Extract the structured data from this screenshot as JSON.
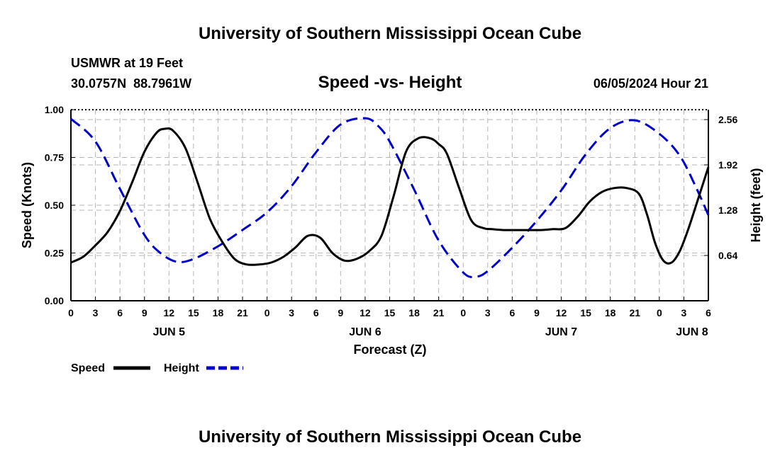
{
  "header": {
    "title": "University of Southern Mississippi Ocean Cube",
    "station": "USMWR at 19 Feet",
    "location": "30.0757N  88.7961W",
    "subtitle": "Speed -vs- Height",
    "datetime": "06/05/2024 Hour 21"
  },
  "footer": {
    "title": "University of Southern Mississippi Ocean Cube"
  },
  "chart_data": {
    "type": "line",
    "title": "Speed -vs- Height",
    "xlabel": "Forecast (Z)",
    "ylabel": "Speed (Knots)",
    "y2label": "Height (feet)",
    "x_unit": "forecast hour (0 = 00Z Jun 5)",
    "xlim": [
      0,
      78
    ],
    "ylim": [
      0,
      1.0
    ],
    "y2lim": [
      0,
      2.7
    ],
    "grid": true,
    "x_tick_values": [
      0,
      3,
      6,
      9,
      12,
      15,
      18,
      21,
      24,
      27,
      30,
      33,
      36,
      39,
      42,
      45,
      48,
      51,
      54,
      57,
      60,
      63,
      66,
      69,
      72,
      75,
      78
    ],
    "x_tick_labels": [
      "0",
      "3",
      "6",
      "9",
      "12",
      "15",
      "18",
      "21",
      "0",
      "3",
      "6",
      "9",
      "12",
      "15",
      "18",
      "21",
      "0",
      "3",
      "6",
      "9",
      "12",
      "15",
      "18",
      "21",
      "0",
      "3",
      "6"
    ],
    "y_tick_values": [
      0,
      0.25,
      0.5,
      0.75,
      1.0
    ],
    "y_tick_labels": [
      "0.00",
      "0.25",
      "0.50",
      "0.75",
      "1.00"
    ],
    "y2_tick_values": [
      0.64,
      1.28,
      1.92,
      2.56
    ],
    "y2_tick_labels": [
      "0.64",
      "1.28",
      "1.92",
      "2.56"
    ],
    "day_labels": [
      {
        "x": 12,
        "label": "JUN 5"
      },
      {
        "x": 36,
        "label": "JUN 6"
      },
      {
        "x": 60,
        "label": "JUN 7"
      },
      {
        "x": 76,
        "label": "JUN 8"
      }
    ],
    "legend": {
      "placement": "bottom-left",
      "entries": [
        "Speed",
        "Height"
      ]
    },
    "series": [
      {
        "name": "Speed",
        "axis": "left",
        "color": "#000000",
        "dash": "solid",
        "x": [
          0,
          1.5,
          3,
          4.5,
          6,
          7.5,
          9,
          10.5,
          11.5,
          12.5,
          14,
          15.5,
          17,
          18.5,
          20,
          21.5,
          23,
          24.5,
          26,
          27.5,
          29,
          30.5,
          32,
          33.5,
          35,
          36.5,
          38,
          39.5,
          41,
          42.5,
          44,
          45,
          46,
          47.5,
          49,
          50.5,
          51.5,
          53,
          54.5,
          56,
          57.5,
          59,
          60.5,
          62,
          63.5,
          65,
          66.5,
          68,
          69.5,
          70.5,
          71.5,
          72.5,
          73.5,
          74.5,
          75.5,
          76.5,
          78
        ],
        "y": [
          0.2,
          0.23,
          0.29,
          0.36,
          0.47,
          0.62,
          0.78,
          0.88,
          0.9,
          0.89,
          0.8,
          0.62,
          0.43,
          0.31,
          0.22,
          0.19,
          0.19,
          0.2,
          0.23,
          0.28,
          0.34,
          0.33,
          0.25,
          0.21,
          0.22,
          0.26,
          0.34,
          0.55,
          0.78,
          0.85,
          0.85,
          0.82,
          0.77,
          0.59,
          0.42,
          0.38,
          0.375,
          0.37,
          0.37,
          0.37,
          0.37,
          0.375,
          0.38,
          0.44,
          0.52,
          0.57,
          0.59,
          0.59,
          0.56,
          0.45,
          0.3,
          0.21,
          0.2,
          0.26,
          0.37,
          0.5,
          0.7
        ]
      },
      {
        "name": "Height",
        "axis": "right",
        "color": "#0000cc",
        "dash": "dashed",
        "x": [
          0,
          3,
          6,
          9,
          11,
          13,
          15,
          18,
          21,
          24,
          27,
          30,
          33,
          36,
          37.5,
          39,
          42,
          45,
          48,
          49.5,
          51,
          54,
          57,
          60,
          63,
          66,
          69,
          72,
          74.5,
          76.5,
          78
        ],
        "y": [
          2.57,
          2.25,
          1.58,
          0.93,
          0.67,
          0.55,
          0.59,
          0.77,
          1.0,
          1.25,
          1.62,
          2.1,
          2.49,
          2.58,
          2.48,
          2.25,
          1.57,
          0.85,
          0.4,
          0.34,
          0.42,
          0.75,
          1.13,
          1.56,
          2.07,
          2.44,
          2.55,
          2.36,
          2.05,
          1.6,
          1.21
        ]
      }
    ]
  }
}
